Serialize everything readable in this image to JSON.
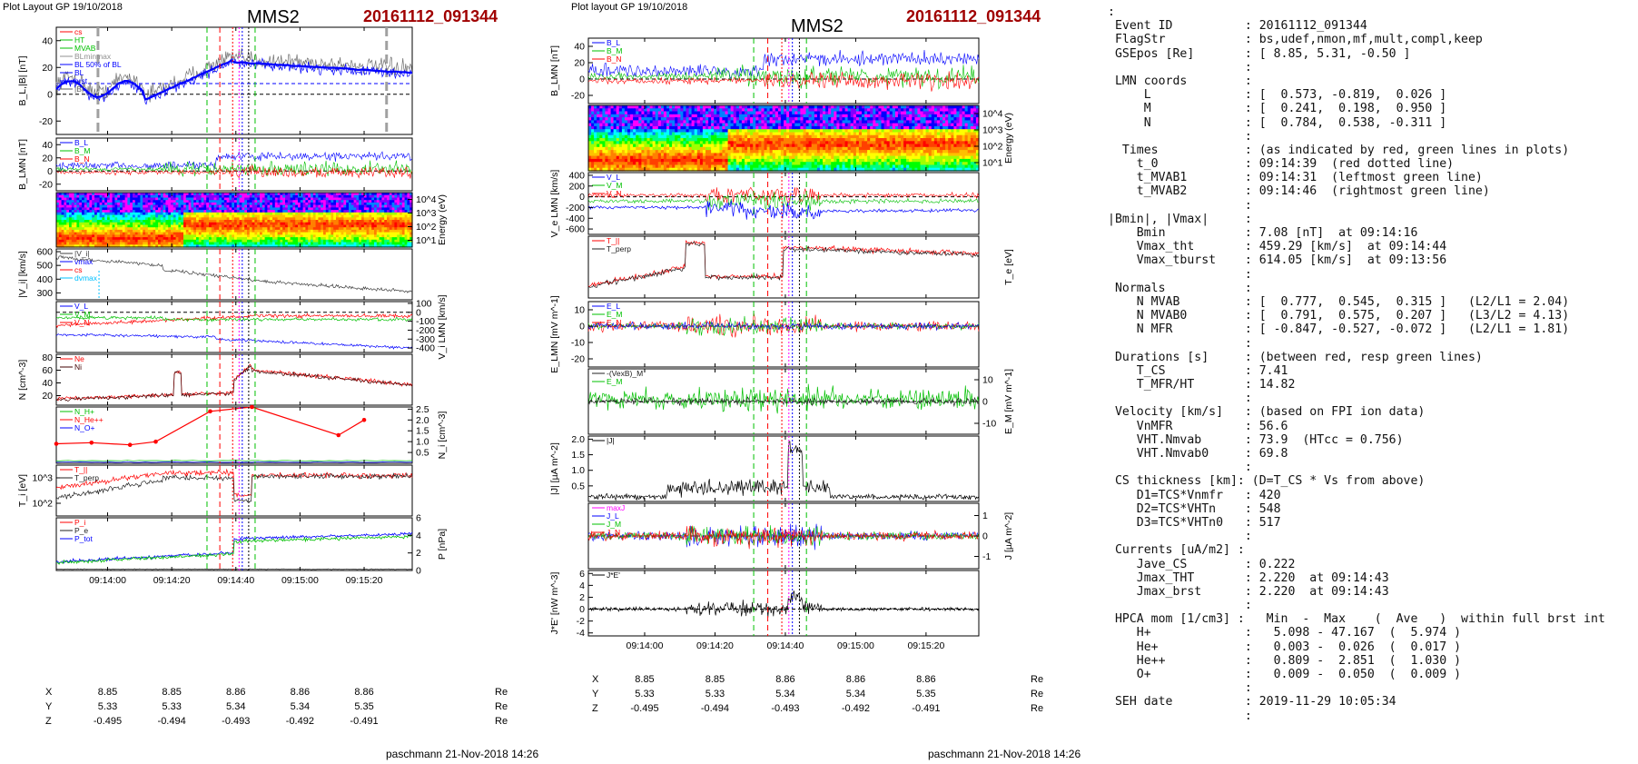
{
  "left_page": {
    "plot_layout": "Plot Layout GP 19/10/2018",
    "satellite": "MMS2",
    "event": "20161112_091344",
    "footer": "paschmann 21-Nov-2018 14:26"
  },
  "middle_page": {
    "plot_layout": "Plot layout GP 19/10/2018",
    "satellite": "MMS2",
    "event": "20161112_091344",
    "footer": "paschmann 21-Nov-2018 14:26"
  },
  "time_ticks": [
    "09:14:00",
    "09:14:20",
    "09:14:40",
    "09:15:00",
    "09:15:20"
  ],
  "time_range": [
    "09:13:44",
    "09:15:35"
  ],
  "position_table": {
    "unit": "Re",
    "rows": [
      {
        "label": "X",
        "values": [
          "8.85",
          "8.85",
          "8.86",
          "8.86",
          "8.86"
        ]
      },
      {
        "label": "Y",
        "values": [
          "5.33",
          "5.33",
          "5.34",
          "5.34",
          "5.35"
        ]
      },
      {
        "label": "Z",
        "values": [
          "-0.495",
          "-0.494",
          "-0.493",
          "-0.492",
          "-0.491"
        ]
      }
    ]
  },
  "colors": {
    "red": "#ff0000",
    "green": "#00c000",
    "blue": "#0000ff",
    "black": "#000000",
    "grey": "#808080",
    "magenta": "#ff00ff",
    "title_red": "#a00000"
  },
  "chart_data": [
    {
      "type": "line",
      "id": "L1",
      "ylabel": "B_L,|B| [nT]",
      "ylim": [
        -30,
        50
      ],
      "yticks": [
        "40",
        "20",
        "0",
        "-20"
      ],
      "legend": [
        "cs",
        "HT",
        "MVAB",
        "BLminmax",
        "BL 50% of BL",
        "BL",
        "brst",
        "|B|"
      ]
    },
    {
      "type": "line",
      "id": "L2",
      "ylabel": "B_LMN [nT]",
      "ylim": [
        -30,
        50
      ],
      "yticks": [
        "40",
        "20",
        "0",
        "-20"
      ],
      "legend": [
        "B_L",
        "B_M",
        "B_N"
      ]
    },
    {
      "type": "heatmap",
      "id": "L3",
      "ylabel": "Energy (eV)",
      "yticks": [
        "10^4",
        "10^3",
        "10^2",
        "10^1"
      ]
    },
    {
      "type": "line",
      "id": "L4",
      "ylabel": "|V_i| [km/s]",
      "ylim": [
        250,
        620
      ],
      "yticks": [
        "600",
        "500",
        "400",
        "300"
      ],
      "legend": [
        "|V_i|",
        "vmax",
        "cs",
        "dvmax"
      ]
    },
    {
      "type": "line",
      "id": "L5",
      "ylabel": "V_i LMN [km/s]",
      "ylim": [
        -450,
        120
      ],
      "yticks": [
        "100",
        "0",
        "-100",
        "-200",
        "-300",
        "-400"
      ],
      "legend": [
        "V_L",
        "V_M",
        "V_N"
      ]
    },
    {
      "type": "line",
      "id": "L6",
      "ylabel": "N [cm^-3]",
      "ylim": [
        5,
        85
      ],
      "yticks": [
        "80",
        "60",
        "40",
        "20"
      ],
      "legend": [
        "Ne",
        "Ni"
      ]
    },
    {
      "type": "line",
      "id": "L7",
      "ylabel": "N_i [cm^-3]",
      "ylim": [
        0,
        2.6
      ],
      "yticks": [
        "2.5",
        "2.0",
        "1.5",
        "1.0",
        "0.5"
      ],
      "legend": [
        "N_H+",
        "N_He++",
        "N_O+"
      ],
      "series": [
        {
          "name": "He++",
          "x": [
            "09:13:44",
            "09:13:55",
            "09:14:07",
            "09:14:15",
            "09:14:32",
            "09:14:45",
            "09:15:12",
            "09:15:20"
          ],
          "values": [
            0.9,
            0.95,
            0.85,
            1.0,
            2.4,
            2.6,
            1.3,
            2.0
          ]
        }
      ]
    },
    {
      "type": "line",
      "id": "L8",
      "ylabel": "T_i [eV]",
      "yticks": [
        "10^3",
        "10^2"
      ],
      "legend": [
        "T_||",
        "T_perp"
      ]
    },
    {
      "type": "line",
      "id": "L9",
      "ylabel": "P [nPa]",
      "ylim": [
        0,
        6
      ],
      "yticks": [
        "6",
        "4",
        "2",
        "0"
      ],
      "legend": [
        "P_i",
        "P_e",
        "P_tot"
      ]
    },
    {
      "type": "line",
      "id": "M1",
      "ylabel": "B_LMN [nT]",
      "ylim": [
        -30,
        50
      ],
      "yticks": [
        "40",
        "20",
        "0",
        "-20"
      ],
      "legend": [
        "B_L",
        "B_M",
        "B_N"
      ]
    },
    {
      "type": "heatmap",
      "id": "M2",
      "ylabel": "Energy (eV)",
      "yticks": [
        "10^4",
        "10^3",
        "10^2",
        "10^1"
      ]
    },
    {
      "type": "line",
      "id": "M3",
      "ylabel": "V_e LMN [km/s]",
      "ylim": [
        -700,
        450
      ],
      "yticks": [
        "400",
        "200",
        "0",
        "-200",
        "-400",
        "-600"
      ],
      "legend": [
        "V_L",
        "V_M",
        "V_N"
      ]
    },
    {
      "type": "line",
      "id": "M4",
      "ylabel": "T_e [eV]",
      "legend": [
        "T_||",
        "T_perp"
      ]
    },
    {
      "type": "line",
      "id": "M5",
      "ylabel": "E_LMN [mV m^-1]",
      "ylim": [
        -25,
        15
      ],
      "yticks": [
        "10",
        "0",
        "-10",
        "-20"
      ],
      "legend": [
        "E_L",
        "E_M",
        "E_N"
      ]
    },
    {
      "type": "line",
      "id": "M6",
      "ylabel": "E_M [mV m^-1]",
      "ylim": [
        -15,
        15
      ],
      "yticks": [
        "10",
        "0",
        "-10"
      ],
      "legend": [
        "-(VexB)_M",
        "E_M"
      ]
    },
    {
      "type": "line",
      "id": "M7",
      "ylabel": "|J| [µA m^-2]",
      "ylim": [
        0,
        2.1
      ],
      "yticks": [
        "2.0",
        "1.5",
        "1.0",
        "0.5"
      ],
      "legend": [
        "|J|"
      ]
    },
    {
      "type": "line",
      "id": "M8",
      "ylabel": "J [µA m^-2]",
      "ylim": [
        -1.6,
        1.6
      ],
      "yticks": [
        "1",
        "0",
        "-1"
      ],
      "legend": [
        "maxJ",
        "J_L",
        "J_M",
        "J_N"
      ]
    },
    {
      "type": "line",
      "id": "M9",
      "ylabel": "J*E' [nW m^-3]",
      "ylim": [
        -4.5,
        6.5
      ],
      "yticks": [
        "6",
        "4",
        "2",
        "0",
        "-2",
        "-4"
      ],
      "legend": [
        "J*E'"
      ]
    }
  ],
  "right_panel": {
    "lines": [
      ":",
      " Event ID          : 20161112_091344",
      " FlagStr           : bs,udef,nmon,mf,mult,compl,keep",
      " GSEpos [Re]       : [ 8.85, 5.31, -0.50 ]",
      "                   :",
      " LMN coords        :",
      "     L             : [  0.573, -0.819,  0.026 ]",
      "     M             : [  0.241,  0.198,  0.950 ]",
      "     N             : [  0.784,  0.538, -0.311 ]",
      "                   :",
      "  Times            : (as indicated by red, green lines in plots)",
      "    t_0            : 09:14:39  (red dotted line)",
      "    t_MVAB1        : 09:14:31  (leftmost green line)",
      "    t_MVAB2        : 09:14:46  (rightmost green line)",
      "                   :",
      "|Bmin|, |Vmax|     :",
      "    Bmin           : 7.08 [nT]  at 09:14:16",
      "    Vmax_tht       : 459.29 [km/s]  at 09:14:44",
      "    Vmax_tburst    : 614.05 [km/s]  at 09:13:56",
      "                   :",
      " Normals           :",
      "    N MVAB         : [  0.777,  0.545,  0.315 ]   (L2/L1 = 2.04)",
      "    N MVAB0        : [  0.791,  0.575,  0.207 ]   (L3/L2 = 4.13)",
      "    N MFR          : [ -0.847, -0.527, -0.072 ]   (L2/L1 = 1.81)",
      "                   :",
      " Durations [s]     : (between red, resp green lines)",
      "    T_CS           : 7.41",
      "    T_MFR/HT       : 14.82",
      "                   :",
      " Velocity [km/s]   : (based on FPI ion data)",
      "    VnMFR          : 56.6",
      "    VHT.Nmvab      : 73.9  (HTcc = 0.756)",
      "    VHT.Nmvab0     : 69.8",
      "                   :",
      " CS thickness [km]: (D=T_CS * Vs from above)",
      "    D1=TCS*Vnmfr   : 420",
      "    D2=TCS*VHTn    : 548",
      "    D3=TCS*VHTn0   : 517",
      "                   :",
      " Currents [uA/m2] :",
      "    Jave_CS        : 0.222",
      "    Jmax_THT       : 2.220  at 09:14:43",
      "    Jmax_brst      : 2.220  at 09:14:43",
      "                   :",
      " HPCA mom [1/cm3] :   Min  -  Max    (  Ave   )  within full brst int",
      "    H+             :   5.098 - 47.167  (  5.974 )",
      "    He+            :   0.003 -  0.026  (  0.017 )",
      "    He++           :   0.809 -  2.851  (  1.030 )",
      "    O+             :   0.009 -  0.050  (  0.009 )",
      "                   :",
      " SEH date          : 2019-11-29 10:05:34",
      "                   :"
    ]
  }
}
